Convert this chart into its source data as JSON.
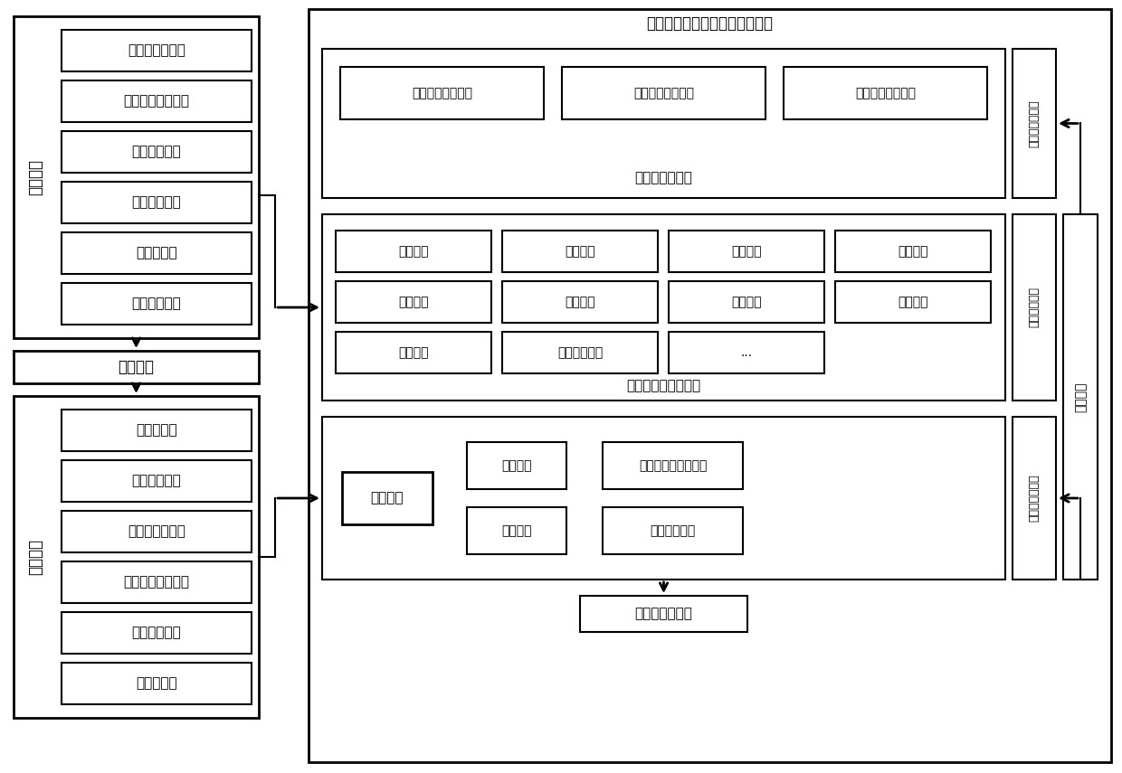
{
  "title_platform": "废铅蓄电池完整性快速识别平台",
  "left_top_label": "电池出厂",
  "left_mid_label": "电池使用",
  "left_bot_label": "电池回收",
  "factory_boxes": [
    "尺寸和重量录入",
    "六面照片拍摄上传",
    "其他信息录入",
    "生成产品编码",
    "二维码生成",
    "电子标签写入"
  ],
  "recycle_boxes": [
    "扫描二维码",
    "读取电子标签",
    "尺寸和重量录入",
    "六面照片拍摄上传",
    "破损部位录入",
    "完整性分析"
  ],
  "rule_boxes": [
    "出厂回收重量差异",
    "出厂回收尺寸差异",
    "出厂回收外观差异"
  ],
  "rule_label": "完整性判别规则",
  "knowledge_label": "基础知识库模块",
  "db_row1": [
    "产品编码",
    "产品尺寸",
    "产品重量",
    "产品图片"
  ],
  "db_row2": [
    "产品型号",
    "生产批次",
    "生产日期",
    "生产厂家"
  ],
  "db_row3": [
    "使用寿命",
    "含铅酸液占比",
    "..."
  ],
  "db_label": "铅蓄电池产品数据库",
  "info_storage_label": "信息存储模块",
  "backup_label": "后备规则",
  "recog_box_weight": "重量匹配",
  "recog_boxes_mid": [
    "产品识别",
    "尺寸匹配"
  ],
  "recog_boxes_right": [
    "标签信息存储区分析",
    "外观照片对比"
  ],
  "recog_label": "完整性识别模块",
  "result_label": "完整性识别结果",
  "bg_color": "#ffffff",
  "border_color": "#000000",
  "text_color": "#000000",
  "fig_w": 12.4,
  "fig_h": 8.55,
  "dpi": 100
}
